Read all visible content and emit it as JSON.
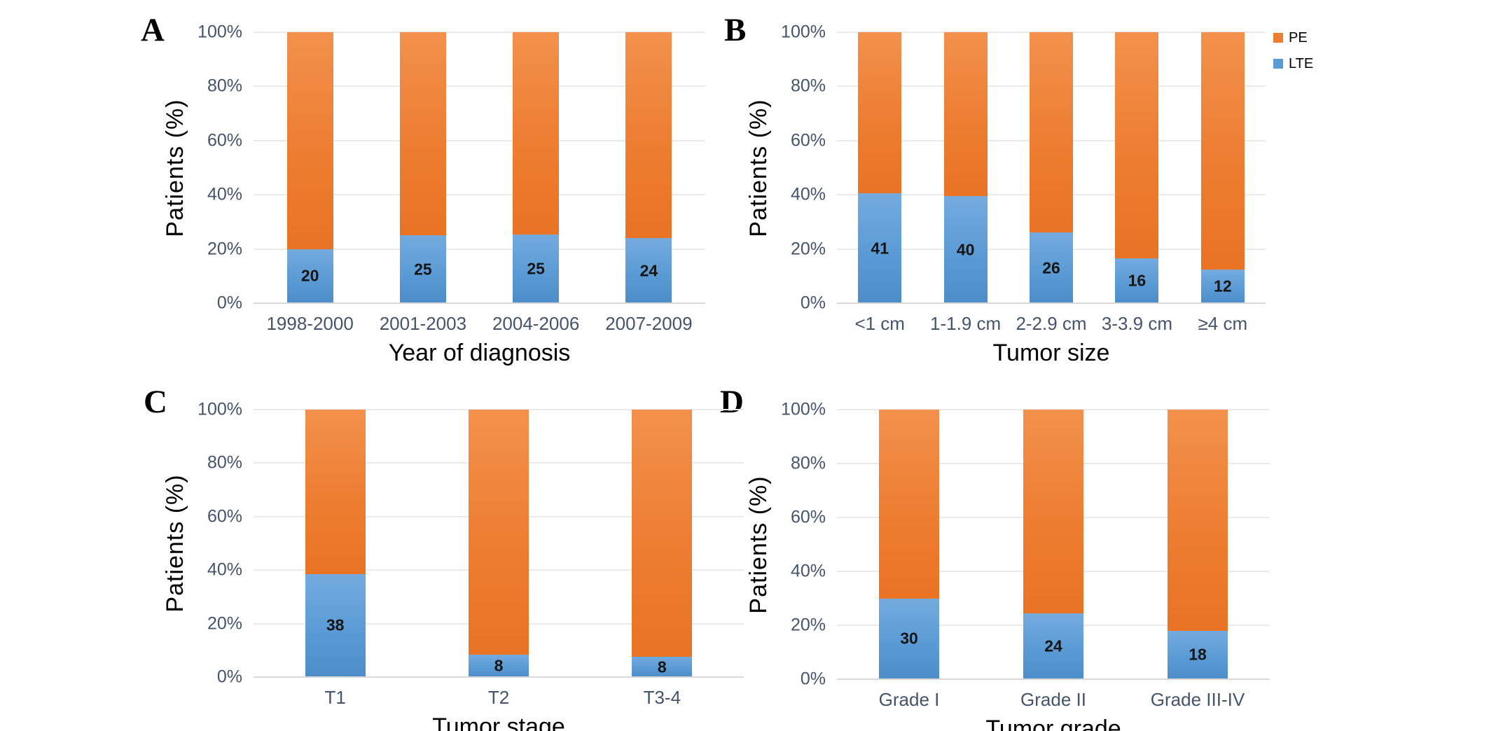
{
  "figure": {
    "background": "#ffffff",
    "legend": {
      "position": "top-right",
      "items": [
        {
          "label": "PE",
          "color": "#ED7D31"
        },
        {
          "label": "LTE",
          "color": "#5B9BD5"
        }
      ]
    }
  },
  "colors": {
    "pe_top": "#F2914C",
    "pe_mid": "#ED7D31",
    "pe_bottom": "#EA7324",
    "lte_top": "#74ABDF",
    "lte_mid": "#5B9BD5",
    "lte_bottom": "#4C8DC9",
    "gridline": "#EAEAEA",
    "axis_line": "#D9D9D9",
    "tick_text": "#44546A",
    "category_text": "#44546A",
    "value_text": "#151515",
    "title_text": "#000000"
  },
  "chart_data": [
    {
      "panel_label": "A",
      "type": "bar",
      "stacked_percent": true,
      "xlabel": "Year of diagnosis",
      "ylabel": "Patients (%)",
      "ylim": [
        0,
        100
      ],
      "grid": true,
      "yticks": [
        "100%",
        "80%",
        "60%",
        "40%",
        "20%",
        "0%"
      ],
      "categories": [
        "1998-2000",
        "2001-2003",
        "2004-2006",
        "2007-2009"
      ],
      "series": [
        {
          "name": "PE",
          "color": "#ED7D31",
          "values_pct": [
            80,
            75,
            74.7,
            76
          ]
        },
        {
          "name": "LTE",
          "color": "#5B9BD5",
          "values_pct": [
            20,
            25,
            25.3,
            24
          ],
          "data_labels": [
            "20",
            "25",
            "25",
            "24"
          ]
        }
      ]
    },
    {
      "panel_label": "B",
      "type": "bar",
      "stacked_percent": true,
      "xlabel": "Tumor size",
      "ylabel": "Patients (%)",
      "ylim": [
        0,
        100
      ],
      "grid": true,
      "legend_position": "top-right",
      "yticks": [
        "100%",
        "80%",
        "60%",
        "40%",
        "20%",
        "0%"
      ],
      "categories": [
        "<1 cm",
        "1-1.9 cm",
        "2-2.9 cm",
        "3-3.9 cm",
        "≥4 cm"
      ],
      "series": [
        {
          "name": "PE",
          "color": "#ED7D31",
          "values_pct": [
            59.5,
            60.5,
            74,
            83.5,
            87.5
          ]
        },
        {
          "name": "LTE",
          "color": "#5B9BD5",
          "values_pct": [
            40.5,
            39.5,
            26,
            16.5,
            12.5
          ],
          "data_labels": [
            "41",
            "40",
            "26",
            "16",
            "12"
          ]
        }
      ]
    },
    {
      "panel_label": "C",
      "type": "bar",
      "stacked_percent": true,
      "xlabel": "Tumor stage",
      "ylabel": "Patients (%)",
      "ylim": [
        0,
        100
      ],
      "grid": true,
      "yticks": [
        "100%",
        "80%",
        "60%",
        "40%",
        "20%",
        "0%"
      ],
      "categories": [
        "T1",
        "T2",
        "T3-4"
      ],
      "series": [
        {
          "name": "PE",
          "color": "#ED7D31",
          "values_pct": [
            61.5,
            91.5,
            92.5
          ]
        },
        {
          "name": "LTE",
          "color": "#5B9BD5",
          "values_pct": [
            38.5,
            8.5,
            7.5
          ],
          "data_labels": [
            "38",
            "8",
            "8"
          ]
        }
      ]
    },
    {
      "panel_label": "D",
      "type": "bar",
      "stacked_percent": true,
      "xlabel": "Tumor grade",
      "ylabel": "Patients (%)",
      "ylim": [
        0,
        100
      ],
      "grid": true,
      "yticks": [
        "100%",
        "80%",
        "60%",
        "40%",
        "20%",
        "0%"
      ],
      "categories": [
        "Grade I",
        "Grade II",
        "Grade III-IV"
      ],
      "series": [
        {
          "name": "PE",
          "color": "#ED7D31",
          "values_pct": [
            70,
            75.5,
            82
          ]
        },
        {
          "name": "LTE",
          "color": "#5B9BD5",
          "values_pct": [
            30,
            24.5,
            18
          ],
          "data_labels": [
            "30",
            "24",
            "18"
          ]
        }
      ]
    }
  ]
}
